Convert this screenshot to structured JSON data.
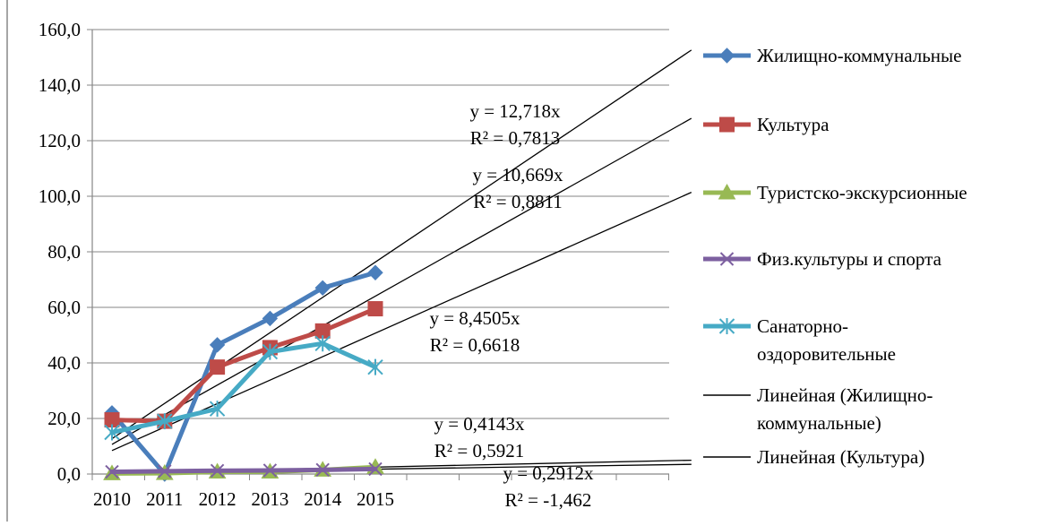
{
  "chart_data": {
    "type": "line",
    "title": "",
    "xlabel": "",
    "ylabel": "",
    "categories": [
      "2010",
      "2011",
      "2012",
      "2013",
      "2014",
      "2015"
    ],
    "ylim": [
      0,
      160
    ],
    "yticks": [
      "0,0",
      "20,0",
      "40,0",
      "60,0",
      "80,0",
      "100,0",
      "120,0",
      "140,0",
      "160,0"
    ],
    "grid": "horizontal",
    "legend_position": "right",
    "series": [
      {
        "name": "Жилищно-коммунальные",
        "color": "#4a7ebb",
        "marker": "diamond",
        "values": [
          22,
          0,
          46.5,
          56,
          67,
          72.5
        ]
      },
      {
        "name": "Культура",
        "color": "#be4b48",
        "marker": "square",
        "values": [
          19.5,
          19,
          38.5,
          45.5,
          51.5,
          59.5
        ]
      },
      {
        "name": "Туристско-экскурсионные",
        "color": "#98b954",
        "marker": "triangle",
        "values": [
          0.2,
          0.3,
          0.8,
          0.8,
          1.5,
          2.5
        ]
      },
      {
        "name": "Физ.культуры и спорта",
        "color": "#7d60a0",
        "marker": "x",
        "values": [
          0.8,
          1,
          1.2,
          1.3,
          1.5,
          1.8
        ]
      },
      {
        "name": "Санаторно-оздоровительные",
        "name_lines": [
          "Санаторно-",
          "оздоровительные"
        ],
        "color": "#46aac5",
        "marker": "star",
        "values": [
          15,
          19,
          23.5,
          44,
          47,
          38.5
        ]
      }
    ],
    "trendlines": [
      {
        "name": "Линейная (Жилищно-коммунальные)",
        "name_lines": [
          "Линейная (Жилищно-",
          "коммунальные)"
        ],
        "slope": 12.718,
        "in_legend": true
      },
      {
        "name": "Линейная (Культура)",
        "name_lines": [
          "Линейная (Культура)"
        ],
        "slope": 10.669,
        "in_legend": true
      },
      {
        "slope": 8.4505,
        "in_legend": false
      },
      {
        "slope": 0.4143,
        "in_legend": false
      },
      {
        "slope": 0.2912,
        "in_legend": false
      }
    ],
    "equations": [
      {
        "eq": "y = 12,718x",
        "r2": "R² = 0,7813"
      },
      {
        "eq": "y = 10,669x",
        "r2": "R² = 0,8811"
      },
      {
        "eq": "y = 8,4505x",
        "r2": "R² = 0,6618"
      },
      {
        "eq": "y = 0,4143x",
        "r2": "R² = 0,5921"
      },
      {
        "eq": "y = 0,2912x",
        "r2": "R² = -1,462"
      }
    ]
  }
}
